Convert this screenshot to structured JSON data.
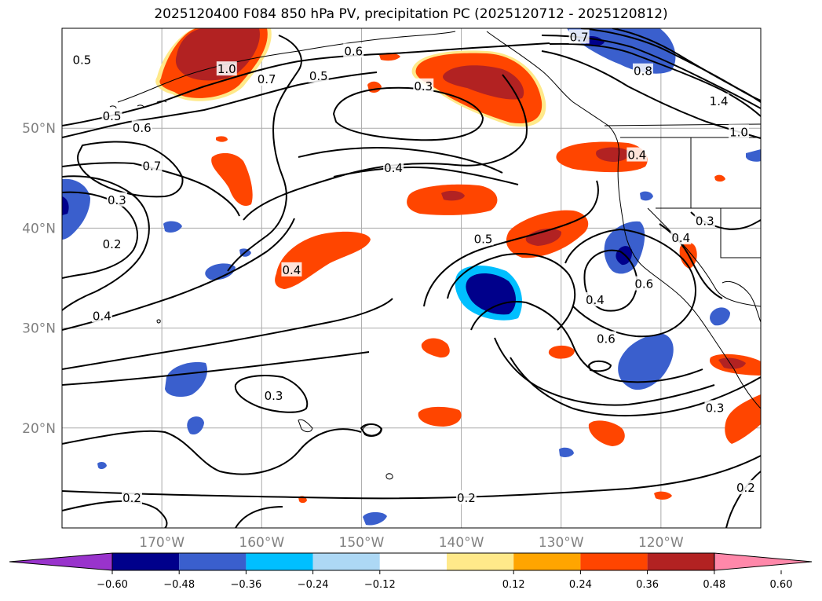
{
  "title": "2025120400 F084 850 hPa PV, precipitation PC (2025120712 - 2025120812)",
  "map": {
    "lon_range": [
      -180,
      -110
    ],
    "lat_range": [
      10,
      60
    ],
    "lat_ticks": [
      {
        "value": 50,
        "label": "50°N"
      },
      {
        "value": 40,
        "label": "40°N"
      },
      {
        "value": 30,
        "label": "30°N"
      },
      {
        "value": 20,
        "label": "20°N"
      }
    ],
    "lon_ticks": [
      {
        "value": -170,
        "label": "170°W"
      },
      {
        "value": -160,
        "label": "160°W"
      },
      {
        "value": -150,
        "label": "150°W"
      },
      {
        "value": -140,
        "label": "140°W"
      },
      {
        "value": -130,
        "label": "130°W"
      },
      {
        "value": -120,
        "label": "120°W"
      }
    ],
    "contour_labels": [
      {
        "text": "0.5",
        "lon": -178,
        "lat": 56.8
      },
      {
        "text": "0.5",
        "lon": -175,
        "lat": 51.2
      },
      {
        "text": "0.6",
        "lon": -172,
        "lat": 50.0
      },
      {
        "text": "0.7",
        "lon": -171,
        "lat": 46.2
      },
      {
        "text": "0.3",
        "lon": -174.5,
        "lat": 42.8
      },
      {
        "text": "0.2",
        "lon": -175,
        "lat": 38.4
      },
      {
        "text": "0.4",
        "lon": -176,
        "lat": 31.2
      },
      {
        "text": "1.0",
        "lon": -163.5,
        "lat": 55.9
      },
      {
        "text": "0.7",
        "lon": -159.5,
        "lat": 54.9
      },
      {
        "text": "0.5",
        "lon": -154.3,
        "lat": 55.2
      },
      {
        "text": "0.6",
        "lon": -150.8,
        "lat": 57.7
      },
      {
        "text": "0.3",
        "lon": -143.8,
        "lat": 54.2
      },
      {
        "text": "0.7",
        "lon": -128.2,
        "lat": 59.1
      },
      {
        "text": "0.8",
        "lon": -121.8,
        "lat": 55.7
      },
      {
        "text": "1.4",
        "lon": -114.2,
        "lat": 52.7
      },
      {
        "text": "1.0",
        "lon": -112.2,
        "lat": 49.6
      },
      {
        "text": "0.4",
        "lon": -146.8,
        "lat": 46.0
      },
      {
        "text": "0.4",
        "lon": -122.4,
        "lat": 47.3
      },
      {
        "text": "0.3",
        "lon": -115.6,
        "lat": 40.7
      },
      {
        "text": "0.4",
        "lon": -118.0,
        "lat": 39.0
      },
      {
        "text": "0.5",
        "lon": -137.8,
        "lat": 38.9
      },
      {
        "text": "0.4",
        "lon": -157.0,
        "lat": 35.8
      },
      {
        "text": "0.6",
        "lon": -121.7,
        "lat": 34.4
      },
      {
        "text": "0.4",
        "lon": -126.6,
        "lat": 32.8
      },
      {
        "text": "0.6",
        "lon": -125.5,
        "lat": 28.9
      },
      {
        "text": "0.3",
        "lon": -158.8,
        "lat": 23.2
      },
      {
        "text": "0.3",
        "lon": -114.6,
        "lat": 22.0
      },
      {
        "text": "0.2",
        "lon": -173.0,
        "lat": 13.0
      },
      {
        "text": "0.2",
        "lon": -139.5,
        "lat": 13.0
      },
      {
        "text": "0.2",
        "lon": -111.5,
        "lat": 14.0
      }
    ]
  },
  "colorbar": {
    "colors": [
      "#9933cc",
      "#00008b",
      "#3a5fcd",
      "#00bfff",
      "#add8f5",
      "#ffffff",
      "#ffe98a",
      "#ffa500",
      "#ff4500",
      "#b22222",
      "#ff88aa"
    ],
    "tick_labels": [
      "−0.60",
      "−0.48",
      "−0.36",
      "−0.24",
      "−0.12",
      "0.12",
      "0.24",
      "0.36",
      "0.48",
      "0.60"
    ]
  }
}
